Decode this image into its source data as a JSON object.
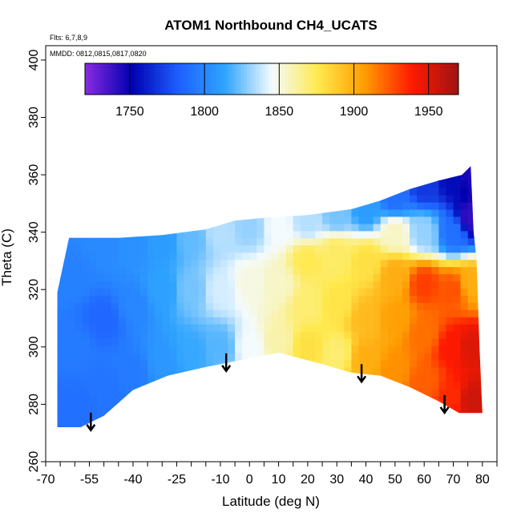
{
  "chart_data": {
    "type": "heatmap",
    "title": "ATOM1 Northbound CH4_UCATS",
    "xlabel": "Latitude (deg N)",
    "ylabel": "Theta (C)",
    "xlim": [
      -70,
      85
    ],
    "ylim": [
      260,
      405
    ],
    "x_ticks": [
      -70,
      -55,
      -40,
      -25,
      -10,
      0,
      10,
      20,
      30,
      40,
      50,
      60,
      70,
      80
    ],
    "y_ticks": [
      260,
      280,
      300,
      320,
      340,
      360,
      380,
      400
    ],
    "annotations": [
      "Flts: 6,7,8,9",
      "MMDD: 0812,0815,0817,0820"
    ],
    "colorbar": {
      "min": 1720,
      "max": 1970,
      "ticks": [
        1750,
        1800,
        1850,
        1900,
        1950
      ],
      "colors": [
        "#8a2be2",
        "#0000b0",
        "#1e5fff",
        "#2fa4ff",
        "#f4fbff",
        "#ffe94d",
        "#ff9b00",
        "#ff1a00",
        "#9e1414"
      ]
    },
    "upper_boundary": [
      [
        -66,
        319
      ],
      [
        -62,
        338
      ],
      [
        -45,
        338
      ],
      [
        -30,
        339
      ],
      [
        -15,
        341
      ],
      [
        -5,
        344
      ],
      [
        5,
        345
      ],
      [
        20,
        346
      ],
      [
        35,
        348
      ],
      [
        45,
        351
      ],
      [
        55,
        355
      ],
      [
        65,
        358
      ],
      [
        73,
        360
      ],
      [
        76,
        363
      ],
      [
        77,
        340
      ],
      [
        78,
        330
      ],
      [
        79,
        300
      ],
      [
        80,
        277
      ]
    ],
    "lower_boundary": [
      [
        -66,
        272
      ],
      [
        -58,
        272
      ],
      [
        -50,
        276
      ],
      [
        -40,
        285
      ],
      [
        -28,
        290
      ],
      [
        -15,
        293
      ],
      [
        -5,
        295
      ],
      [
        10,
        298
      ],
      [
        25,
        294
      ],
      [
        35,
        291
      ],
      [
        45,
        290
      ],
      [
        55,
        286
      ],
      [
        65,
        281
      ],
      [
        72,
        277
      ],
      [
        80,
        277
      ]
    ],
    "arrows_lat": [
      -54.5,
      -8,
      38.5,
      67
    ],
    "points": [
      {
        "x": -60,
        "y": 280,
        "v": 1790
      },
      {
        "x": -60,
        "y": 300,
        "v": 1795
      },
      {
        "x": -60,
        "y": 325,
        "v": 1798
      },
      {
        "x": -50,
        "y": 285,
        "v": 1792
      },
      {
        "x": -50,
        "y": 310,
        "v": 1786
      },
      {
        "x": -50,
        "y": 335,
        "v": 1802
      },
      {
        "x": -40,
        "y": 292,
        "v": 1795
      },
      {
        "x": -40,
        "y": 315,
        "v": 1800
      },
      {
        "x": -40,
        "y": 335,
        "v": 1805
      },
      {
        "x": -30,
        "y": 295,
        "v": 1808
      },
      {
        "x": -30,
        "y": 320,
        "v": 1812
      },
      {
        "x": -30,
        "y": 337,
        "v": 1810
      },
      {
        "x": -20,
        "y": 298,
        "v": 1815
      },
      {
        "x": -20,
        "y": 320,
        "v": 1825
      },
      {
        "x": -20,
        "y": 338,
        "v": 1822
      },
      {
        "x": -10,
        "y": 300,
        "v": 1820
      },
      {
        "x": -10,
        "y": 320,
        "v": 1840
      },
      {
        "x": -10,
        "y": 340,
        "v": 1835
      },
      {
        "x": 0,
        "y": 300,
        "v": 1845
      },
      {
        "x": 0,
        "y": 322,
        "v": 1850
      },
      {
        "x": 0,
        "y": 342,
        "v": 1830
      },
      {
        "x": 10,
        "y": 302,
        "v": 1860
      },
      {
        "x": 10,
        "y": 322,
        "v": 1855
      },
      {
        "x": 10,
        "y": 342,
        "v": 1845
      },
      {
        "x": 20,
        "y": 300,
        "v": 1880
      },
      {
        "x": 20,
        "y": 315,
        "v": 1870
      },
      {
        "x": 20,
        "y": 330,
        "v": 1875
      },
      {
        "x": 20,
        "y": 344,
        "v": 1835
      },
      {
        "x": 30,
        "y": 298,
        "v": 1870
      },
      {
        "x": 30,
        "y": 315,
        "v": 1878
      },
      {
        "x": 30,
        "y": 333,
        "v": 1872
      },
      {
        "x": 30,
        "y": 346,
        "v": 1825
      },
      {
        "x": 40,
        "y": 296,
        "v": 1900
      },
      {
        "x": 40,
        "y": 310,
        "v": 1895
      },
      {
        "x": 40,
        "y": 330,
        "v": 1880
      },
      {
        "x": 40,
        "y": 348,
        "v": 1810
      },
      {
        "x": 50,
        "y": 292,
        "v": 1910
      },
      {
        "x": 50,
        "y": 310,
        "v": 1905
      },
      {
        "x": 50,
        "y": 325,
        "v": 1900
      },
      {
        "x": 50,
        "y": 340,
        "v": 1855
      },
      {
        "x": 50,
        "y": 352,
        "v": 1790
      },
      {
        "x": 60,
        "y": 288,
        "v": 1922
      },
      {
        "x": 60,
        "y": 305,
        "v": 1918
      },
      {
        "x": 60,
        "y": 322,
        "v": 1930
      },
      {
        "x": 60,
        "y": 340,
        "v": 1830
      },
      {
        "x": 60,
        "y": 356,
        "v": 1770
      },
      {
        "x": 70,
        "y": 283,
        "v": 1935
      },
      {
        "x": 70,
        "y": 300,
        "v": 1940
      },
      {
        "x": 70,
        "y": 320,
        "v": 1925
      },
      {
        "x": 70,
        "y": 340,
        "v": 1790
      },
      {
        "x": 70,
        "y": 358,
        "v": 1755
      },
      {
        "x": 76,
        "y": 282,
        "v": 1955
      },
      {
        "x": 76,
        "y": 300,
        "v": 1950
      },
      {
        "x": 76,
        "y": 322,
        "v": 1900
      },
      {
        "x": 76,
        "y": 345,
        "v": 1740
      },
      {
        "x": 76,
        "y": 360,
        "v": 1745
      }
    ]
  }
}
